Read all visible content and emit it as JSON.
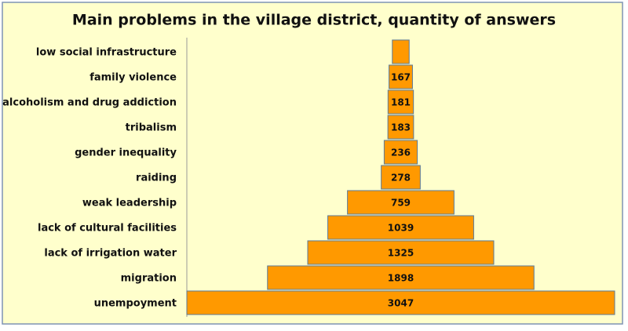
{
  "chart_data": {
    "type": "funnel",
    "title": "Main problems in the village district, quantity of answers",
    "categories": [
      "low social infrastructure",
      "family violence",
      "alcoholism and drug addiction",
      "tribalism",
      "gender inequality",
      "raiding",
      "weak leadership",
      "lack of cultural facilities",
      "lack of irrigation water",
      "migration",
      "unempoyment"
    ],
    "values": [
      120,
      167,
      181,
      183,
      236,
      278,
      759,
      1039,
      1325,
      1898,
      3047
    ],
    "value_labels": [
      null,
      "167",
      "181",
      "183",
      "236",
      "278",
      "759",
      "1039",
      "1325",
      "1898",
      "3047"
    ],
    "color": "#ff9900"
  }
}
